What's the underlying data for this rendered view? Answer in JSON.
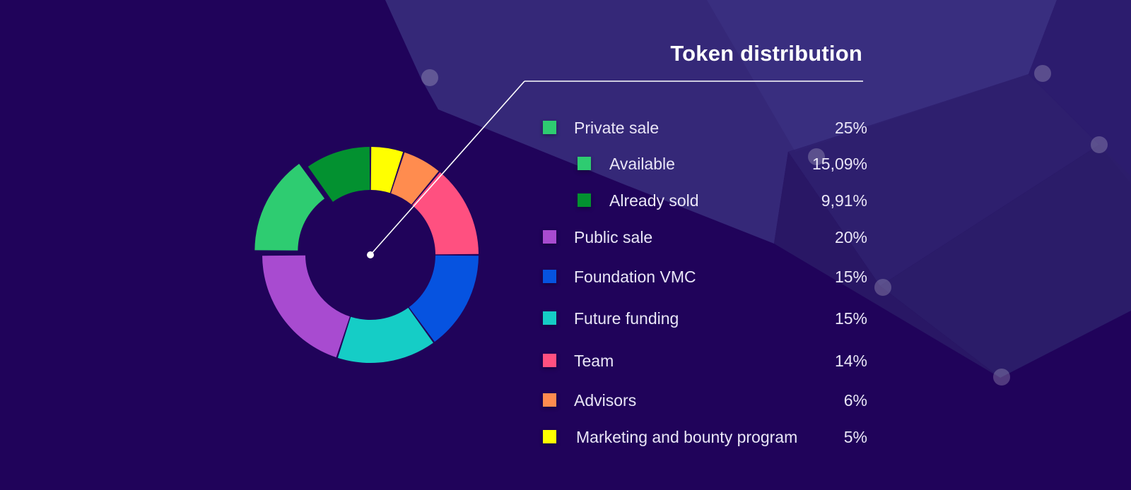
{
  "chart_data": {
    "type": "pie",
    "style": "donut",
    "title": "Token distribution",
    "slices": [
      {
        "label": "Marketing and bounty program",
        "value": 5,
        "display": "5%",
        "color": "#ffff00"
      },
      {
        "label": "Advisors",
        "value": 6,
        "display": "6%",
        "color": "#ff8c4f"
      },
      {
        "label": "Team",
        "value": 14,
        "display": "14%",
        "color": "#ff5080"
      },
      {
        "label": "Foundation VMC",
        "value": 15,
        "display": "15%",
        "color": "#0653e0"
      },
      {
        "label": "Future funding",
        "value": 15,
        "display": "15%",
        "color": "#15cdc6"
      },
      {
        "label": "Public sale",
        "value": 20,
        "display": "20%",
        "color": "#a84bd0"
      },
      {
        "label": "Available",
        "value": 15.09,
        "display": "15,09%",
        "color": "#2ecc71"
      },
      {
        "label": "Already sold",
        "value": 9.91,
        "display": "9,91%",
        "color": "#039130"
      }
    ],
    "legend": [
      {
        "label": "Private sale",
        "display": "25%",
        "color": "#2ecc71",
        "indent": false
      },
      {
        "label": "Available",
        "display": "15,09%",
        "color": "#2ecc71",
        "indent": true
      },
      {
        "label": "Already sold",
        "display": "9,91%",
        "color": "#039130",
        "indent": true
      },
      {
        "label": "Public sale",
        "display": "20%",
        "color": "#a84bd0",
        "indent": false
      },
      {
        "label": "Foundation VMC",
        "display": "15%",
        "color": "#0653e0",
        "indent": false
      },
      {
        "label": "Future funding",
        "display": "15%",
        "color": "#15cdc6",
        "indent": false
      },
      {
        "label": "Team",
        "display": "14%",
        "color": "#ff5080",
        "indent": false
      },
      {
        "label": "Advisors",
        "display": "6%",
        "color": "#ff8c4f",
        "indent": false
      },
      {
        "label": "Marketing and bounty program",
        "display": "5%",
        "color": "#ffff00",
        "indent": false
      }
    ],
    "legend_placement": "right",
    "grid": false
  },
  "colors": {
    "background": "#20035a",
    "text": "#eae6f7",
    "title": "#ffffff"
  }
}
